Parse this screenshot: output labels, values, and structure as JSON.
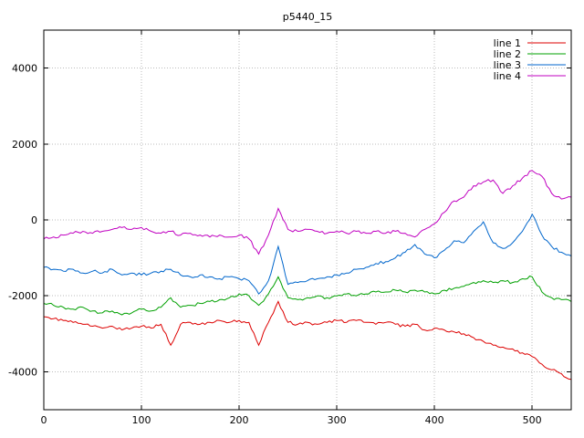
{
  "chart_data": {
    "type": "line",
    "title": "p5440_15",
    "xlabel": "",
    "ylabel": "",
    "xlim": [
      0,
      540
    ],
    "ylim": [
      -5000,
      5000
    ],
    "xticks": [
      0,
      100,
      200,
      300,
      400,
      500
    ],
    "yticks": [
      -4000,
      -2000,
      0,
      2000,
      4000
    ],
    "grid": true,
    "grid_style": "dotted",
    "grid_color": "#bbbbbb",
    "border_color": "#000000",
    "background": "#ffffff",
    "legend_position": "top-right-inside",
    "noise_amplitude": 40,
    "x_start": 0,
    "x_step": 10,
    "series": [
      {
        "name": "line 1",
        "color": "#dd0000",
        "values": [
          -2550,
          -2600,
          -2650,
          -2700,
          -2750,
          -2800,
          -2850,
          -2800,
          -2900,
          -2850,
          -2800,
          -2850,
          -2750,
          -3300,
          -2750,
          -2700,
          -2750,
          -2700,
          -2650,
          -2700,
          -2650,
          -2700,
          -3300,
          -2700,
          -2150,
          -2700,
          -2750,
          -2700,
          -2750,
          -2700,
          -2650,
          -2700,
          -2650,
          -2700,
          -2750,
          -2700,
          -2750,
          -2800,
          -2750,
          -2900,
          -2850,
          -2900,
          -2950,
          -3000,
          -3100,
          -3200,
          -3300,
          -3350,
          -3400,
          -3500,
          -3600,
          -3800,
          -3950,
          -4050,
          -4200
        ]
      },
      {
        "name": "line 2",
        "color": "#00a000",
        "values": [
          -2200,
          -2250,
          -2300,
          -2350,
          -2300,
          -2400,
          -2450,
          -2400,
          -2500,
          -2450,
          -2350,
          -2400,
          -2300,
          -2050,
          -2300,
          -2250,
          -2200,
          -2150,
          -2100,
          -2050,
          -1950,
          -2000,
          -2250,
          -1950,
          -1500,
          -2050,
          -2100,
          -2050,
          -2000,
          -2050,
          -2000,
          -1950,
          -2000,
          -1950,
          -1900,
          -1900,
          -1850,
          -1900,
          -1850,
          -1900,
          -1950,
          -1850,
          -1800,
          -1750,
          -1650,
          -1600,
          -1650,
          -1600,
          -1650,
          -1550,
          -1500,
          -1900,
          -2050,
          -2100,
          -2150
        ]
      },
      {
        "name": "line 3",
        "color": "#0066cc",
        "values": [
          -1250,
          -1300,
          -1350,
          -1300,
          -1400,
          -1350,
          -1400,
          -1300,
          -1450,
          -1400,
          -1450,
          -1400,
          -1350,
          -1300,
          -1450,
          -1500,
          -1450,
          -1500,
          -1550,
          -1500,
          -1550,
          -1600,
          -1950,
          -1600,
          -700,
          -1700,
          -1650,
          -1600,
          -1550,
          -1500,
          -1450,
          -1400,
          -1300,
          -1250,
          -1150,
          -1100,
          -1000,
          -850,
          -650,
          -900,
          -1000,
          -800,
          -550,
          -600,
          -300,
          -50,
          -600,
          -750,
          -600,
          -300,
          150,
          -400,
          -700,
          -850,
          -950
        ]
      },
      {
        "name": "line 4",
        "color": "#c000c0",
        "values": [
          -500,
          -450,
          -400,
          -350,
          -300,
          -350,
          -300,
          -250,
          -200,
          -250,
          -200,
          -300,
          -350,
          -300,
          -400,
          -350,
          -400,
          -450,
          -400,
          -450,
          -400,
          -500,
          -900,
          -400,
          300,
          -250,
          -300,
          -250,
          -300,
          -350,
          -300,
          -350,
          -300,
          -350,
          -300,
          -350,
          -300,
          -350,
          -450,
          -250,
          -100,
          200,
          500,
          600,
          900,
          1000,
          1050,
          700,
          900,
          1100,
          1300,
          1150,
          700,
          550,
          600
        ]
      }
    ]
  }
}
